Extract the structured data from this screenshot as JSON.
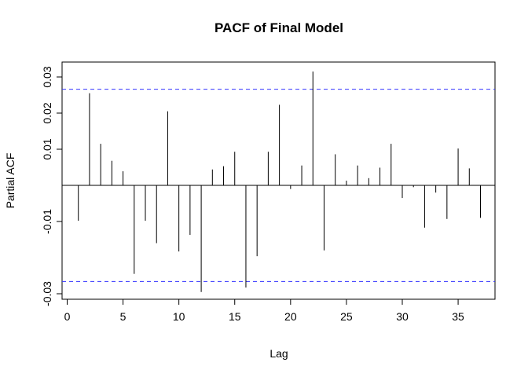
{
  "chart_data": {
    "type": "bar",
    "title": "PACF of Final Model",
    "xlabel": "Lag",
    "ylabel": "Partial ACF",
    "xlim": [
      0,
      38
    ],
    "ylim": [
      -0.031,
      0.033
    ],
    "x_ticks": [
      0,
      5,
      10,
      15,
      20,
      25,
      30,
      35
    ],
    "y_ticks": [
      -0.03,
      -0.01,
      0.01,
      0.02,
      0.03
    ],
    "y_tick_labels": [
      "-0.03",
      "-0.01",
      "0.01",
      "0.02",
      "0.03"
    ],
    "confidence_bound": 0.0266,
    "confidence_color": "#3333ff",
    "grid": false,
    "lags": [
      1,
      2,
      3,
      4,
      5,
      6,
      7,
      8,
      9,
      10,
      11,
      12,
      13,
      14,
      15,
      16,
      17,
      18,
      19,
      20,
      21,
      22,
      23,
      24,
      25,
      26,
      27,
      28,
      29,
      30,
      31,
      32,
      33,
      34,
      35,
      36,
      37
    ],
    "values": [
      -0.0098,
      0.0255,
      0.0115,
      0.0068,
      0.0039,
      -0.0245,
      -0.0098,
      -0.016,
      0.0205,
      -0.0183,
      -0.0137,
      -0.0295,
      0.0044,
      0.0053,
      0.0093,
      -0.0283,
      -0.0196,
      0.0093,
      0.0223,
      -0.001,
      0.0055,
      0.0315,
      -0.018,
      0.0086,
      0.0013,
      0.0055,
      0.002,
      0.0049,
      0.0115,
      -0.0035,
      -0.0005,
      -0.0117,
      -0.002,
      -0.0093,
      0.0102,
      0.0047,
      -0.009
    ]
  }
}
